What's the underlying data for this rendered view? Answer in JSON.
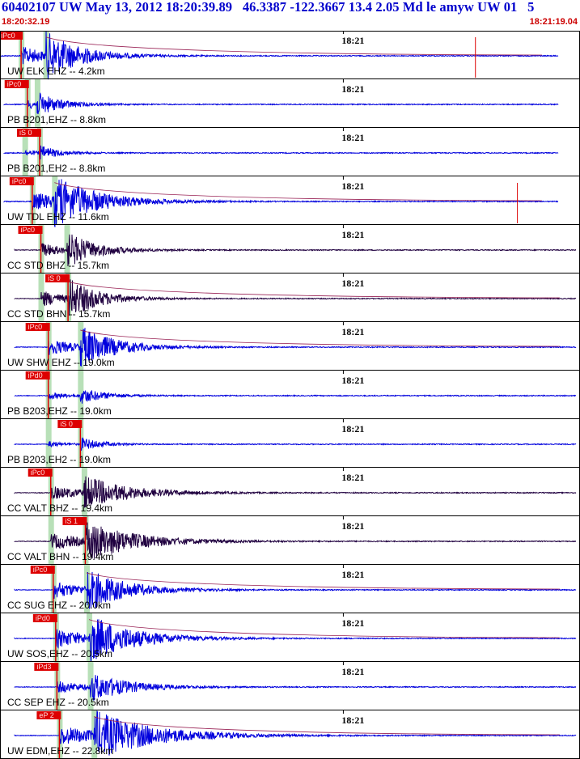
{
  "header": {
    "title": "60402107 UW May 13, 2012 18:20:39.89   46.3387 -122.3667 13.4 2.05 Md le amyw UW 01   5",
    "start_time": "18:20:32.19",
    "end_time": "18:21:19.04"
  },
  "colors": {
    "trace_blue": "#0000dd",
    "trace_dark": "#200040",
    "pick_red": "#dd0000",
    "phase_band": "#b8e0b8",
    "title_blue": "#0000cc",
    "time_red": "#cc0000"
  },
  "chart_data": {
    "type": "seismogram",
    "time_range": [
      "18:20:32.19",
      "18:21:19.04"
    ],
    "minute_tick_label": "18:21",
    "traces": [
      {
        "label": "UW ELK EHZ -- 4.2km",
        "pick": "iPc0",
        "p_time": "18:20:33.9",
        "s_time": "18:20:35.9",
        "color": "blue",
        "amp": 1.0,
        "decay": 7,
        "glitch_time": "18:21:10.7"
      },
      {
        "label": "PB B201,EHZ -- 8.8km",
        "pick": "iPc0",
        "p_time": "18:20:34.4",
        "s_time": "18:20:35.2",
        "color": "blue",
        "amp": 0.45,
        "decay": 5
      },
      {
        "label": "PB B201,EH2 -- 8.8km",
        "pick": "iS 0",
        "p_time": "18:20:34.2",
        "s_time": "18:20:35.4",
        "color": "blue",
        "amp": 0.3,
        "decay": 4
      },
      {
        "label": "UW TDL EHZ -- 11.6km",
        "pick": "iPc0",
        "p_time": "18:20:34.8",
        "s_time": "18:20:36.6",
        "color": "blue",
        "amp": 1.0,
        "decay": 9,
        "glitch_time": "18:21:14.1"
      },
      {
        "label": "CC STD BHZ -- 15.7km",
        "pick": "iPc0",
        "p_time": "18:20:35.5",
        "s_time": "18:20:37.6",
        "color": "dark",
        "amp": 0.75,
        "decay": 6
      },
      {
        "label": "CC STD BHN -- 15.7km",
        "pick": "iS 0",
        "p_time": "18:20:35.5",
        "s_time": "18:20:37.7",
        "color": "dark",
        "amp": 0.9,
        "decay": 6
      },
      {
        "label": "UW SHW EHZ -- 19.0km",
        "pick": "iPc0",
        "p_time": "18:20:36.1",
        "s_time": "18:20:38.7",
        "color": "blue",
        "amp": 0.9,
        "decay": 7
      },
      {
        "label": "PB B203,EHZ -- 19.0km",
        "pick": "iPd0",
        "p_time": "18:20:36.1",
        "s_time": "18:20:38.7",
        "color": "blue",
        "amp": 0.35,
        "decay": 5
      },
      {
        "label": "PB B203,EH2 -- 19.0km",
        "pick": "iS 0",
        "p_time": "18:20:36.1",
        "s_time": "18:20:38.7",
        "color": "blue",
        "amp": 0.3,
        "decay": 4
      },
      {
        "label": "CC VALT BHZ -- 19.4km",
        "pick": "iPc0",
        "p_time": "18:20:36.3",
        "s_time": "18:20:39.0",
        "color": "dark",
        "amp": 0.7,
        "decay": 9
      },
      {
        "label": "CC VALT BHN -- 19.4km",
        "pick": "iS 1",
        "p_time": "18:20:36.3",
        "s_time": "18:20:39.1",
        "color": "dark",
        "amp": 0.85,
        "decay": 10
      },
      {
        "label": "CC SUG EHZ -- 20.0km",
        "pick": "iPc0",
        "p_time": "18:20:36.5",
        "s_time": "18:20:39.2",
        "color": "blue",
        "amp": 0.9,
        "decay": 8
      },
      {
        "label": "UW SOS,EHZ -- 20.5km",
        "pick": "iPd0",
        "p_time": "18:20:36.7",
        "s_time": "18:20:39.4",
        "color": "blue",
        "amp": 1.0,
        "decay": 9
      },
      {
        "label": "CC SEP EHZ -- 20.5km",
        "pick": "iPd3",
        "p_time": "18:20:36.8",
        "s_time": "18:20:39.5",
        "color": "blue",
        "amp": 0.6,
        "decay": 8
      },
      {
        "label": "UW EDM,EHZ -- 22.8km",
        "pick": "eP 2",
        "p_time": "18:20:37.0",
        "s_time": "18:20:39.8",
        "color": "blue",
        "amp": 1.0,
        "decay": 12
      }
    ]
  }
}
